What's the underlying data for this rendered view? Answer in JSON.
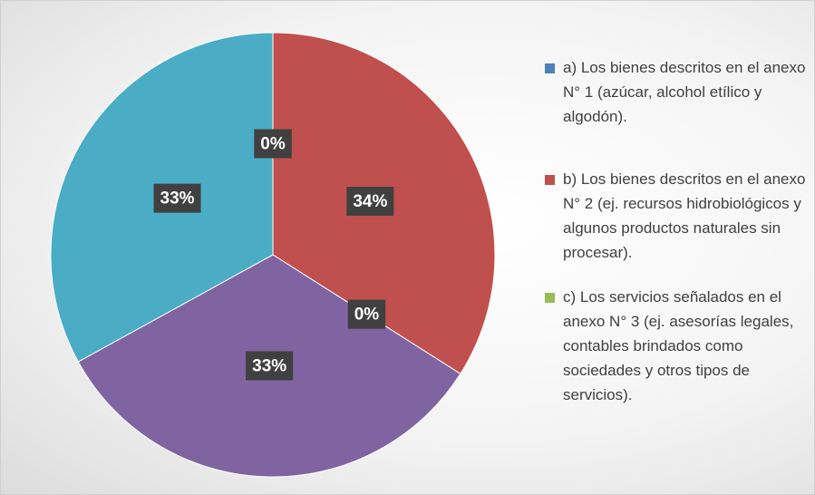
{
  "chart_data": {
    "type": "pie",
    "categories": [
      "a) Los bienes descritos en el anexo N° 1 (azúcar, alcohol etílico y algodón).",
      "b) Los bienes descritos en el anexo N° 2 (ej. recursos hidrobiológicos y algunos productos naturales sin procesar).",
      "c) Los servicios señalados en el anexo N° 3 (ej. asesorías legales, contables brindados como sociedades y otros tipos de servicios).",
      null,
      null
    ],
    "values": [
      0,
      34,
      0,
      33,
      33
    ],
    "value_labels": [
      "0%",
      "34%",
      "0%",
      "33%",
      "33%"
    ],
    "colors": [
      "#4f81bd",
      "#c0504d",
      "#9bbb59",
      "#8064a2",
      "#4bacc6"
    ],
    "legend": "right"
  }
}
